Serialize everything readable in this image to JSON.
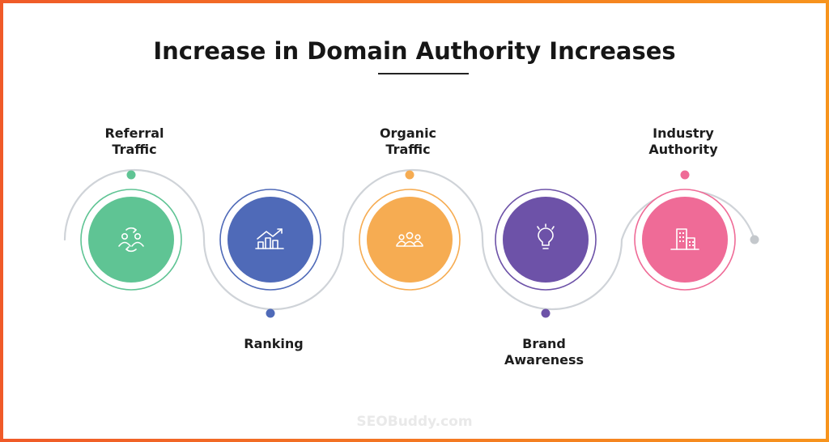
{
  "title": "Increase in Domain Authority Increases",
  "watermark": "SEOBuddy.com",
  "colors": {
    "track": "#cfd3d8",
    "end_dot": "#c4c8cc",
    "green": "#5fc494",
    "blue": "#4f6ab8",
    "orange": "#f6ac52",
    "purple": "#6d52a8",
    "pink": "#ef6b97"
  },
  "steps": [
    {
      "lines": [
        "Referral",
        "Traffic"
      ],
      "icon": "referral-icon",
      "color": "#5fc494"
    },
    {
      "lines": [
        "Ranking"
      ],
      "icon": "bar-chart-icon",
      "color": "#4f6ab8"
    },
    {
      "lines": [
        "Organic",
        "Traffic"
      ],
      "icon": "people-group-icon",
      "color": "#f6ac52"
    },
    {
      "lines": [
        "Brand",
        "Awareness"
      ],
      "icon": "lightbulb-icon",
      "color": "#6d52a8"
    },
    {
      "lines": [
        "Industry",
        "Authority"
      ],
      "icon": "buildings-icon",
      "color": "#ef6b97"
    }
  ]
}
